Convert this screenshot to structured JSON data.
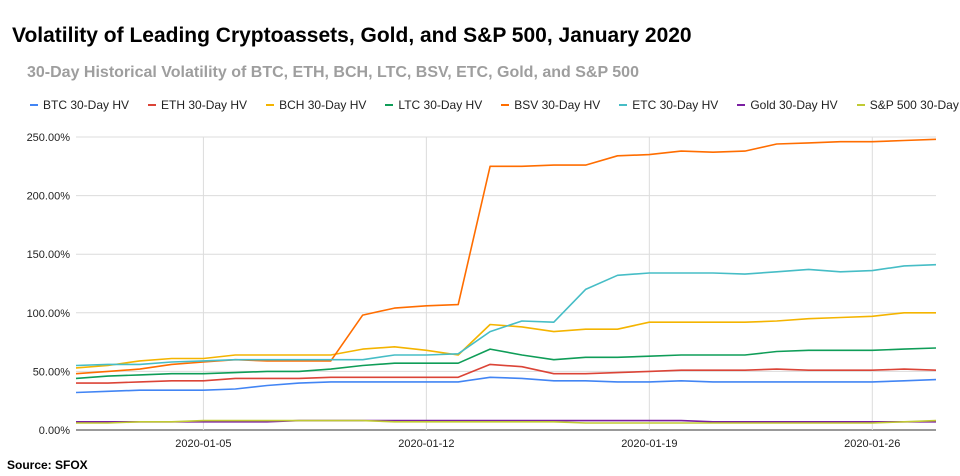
{
  "chart_data": {
    "type": "line",
    "title": "Volatility of Leading Cryptoassets, Gold, and S&P 500, January 2020",
    "subtitle": "30-Day Historical Volatility of BTC, ETH, BCH, LTC, BSV, ETC, Gold, and S&P 500",
    "xlabel": "",
    "ylabel": "",
    "x": [
      "2020-01-01",
      "2020-01-02",
      "2020-01-03",
      "2020-01-04",
      "2020-01-05",
      "2020-01-06",
      "2020-01-07",
      "2020-01-08",
      "2020-01-09",
      "2020-01-10",
      "2020-01-11",
      "2020-01-12",
      "2020-01-13",
      "2020-01-14",
      "2020-01-15",
      "2020-01-16",
      "2020-01-17",
      "2020-01-18",
      "2020-01-19",
      "2020-01-20",
      "2020-01-21",
      "2020-01-22",
      "2020-01-23",
      "2020-01-24",
      "2020-01-25",
      "2020-01-26",
      "2020-01-27",
      "2020-01-28"
    ],
    "x_ticks": [
      "2020-01-05",
      "2020-01-12",
      "2020-01-19",
      "2020-01-26"
    ],
    "y_ticks": [
      "0.00%",
      "50.00%",
      "100.00%",
      "150.00%",
      "200.00%",
      "250.00%"
    ],
    "ylim": [
      0,
      250
    ],
    "grid": true,
    "legend_position": "top",
    "series": [
      {
        "name": "BTC 30-Day HV",
        "color": "#4285f4",
        "values": [
          32,
          33,
          34,
          34,
          34,
          35,
          38,
          40,
          41,
          41,
          41,
          41,
          41,
          45,
          44,
          42,
          42,
          41,
          41,
          42,
          41,
          41,
          41,
          41,
          41,
          41,
          42,
          43
        ]
      },
      {
        "name": "ETH 30-Day HV",
        "color": "#db4437",
        "values": [
          40,
          40,
          41,
          42,
          42,
          44,
          44,
          44,
          45,
          45,
          45,
          45,
          45,
          56,
          54,
          48,
          48,
          49,
          50,
          51,
          51,
          51,
          52,
          51,
          51,
          51,
          52,
          51
        ]
      },
      {
        "name": "BCH 30-Day HV",
        "color": "#f4b400",
        "values": [
          53,
          55,
          59,
          61,
          61,
          64,
          64,
          64,
          64,
          69,
          71,
          68,
          64,
          90,
          88,
          84,
          86,
          86,
          92,
          92,
          92,
          92,
          93,
          95,
          96,
          97,
          100,
          100
        ]
      },
      {
        "name": "LTC 30-Day HV",
        "color": "#0f9d58",
        "values": [
          44,
          46,
          47,
          48,
          48,
          49,
          50,
          50,
          52,
          55,
          57,
          57,
          57,
          69,
          64,
          60,
          62,
          62,
          63,
          64,
          64,
          64,
          67,
          68,
          68,
          68,
          69,
          70
        ]
      },
      {
        "name": "BSV 30-Day HV",
        "color": "#ff6d00",
        "values": [
          48,
          50,
          52,
          56,
          58,
          60,
          59,
          59,
          59,
          98,
          104,
          106,
          107,
          225,
          225,
          226,
          226,
          234,
          235,
          238,
          237,
          238,
          244,
          245,
          246,
          246,
          247,
          248
        ]
      },
      {
        "name": "ETC 30-Day HV",
        "color": "#46bdc6",
        "values": [
          55,
          56,
          56,
          58,
          59,
          60,
          60,
          60,
          60,
          60,
          64,
          64,
          65,
          84,
          93,
          92,
          120,
          132,
          134,
          134,
          134,
          133,
          135,
          137,
          135,
          136,
          140,
          141
        ]
      },
      {
        "name": "Gold 30-Day HV",
        "color": "#7b1fa2",
        "values": [
          7,
          7,
          7,
          7,
          7,
          7,
          7,
          8,
          8,
          8,
          8,
          8,
          8,
          8,
          8,
          8,
          8,
          8,
          8,
          8,
          7,
          7,
          7,
          7,
          7,
          7,
          7,
          7
        ]
      },
      {
        "name": "S&P 500 30-Day HV",
        "color": "#c0ca33",
        "values": [
          6,
          6,
          7,
          7,
          8,
          8,
          8,
          8,
          8,
          8,
          7,
          7,
          7,
          7,
          7,
          7,
          6,
          6,
          6,
          6,
          6,
          6,
          6,
          6,
          6,
          6,
          7,
          8
        ]
      }
    ],
    "source": "Source: SFOX"
  }
}
